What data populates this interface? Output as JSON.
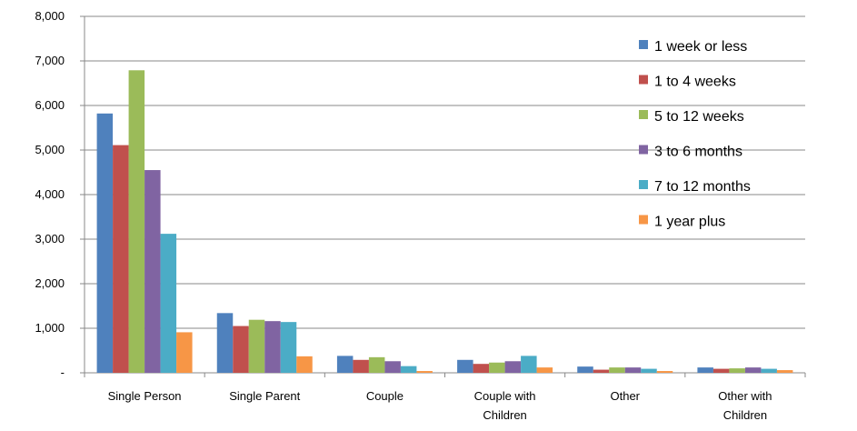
{
  "chart_data": {
    "type": "bar",
    "title": "",
    "xlabel": "",
    "ylabel": "",
    "ylim": [
      0,
      8000
    ],
    "yticks": [
      0,
      1000,
      2000,
      3000,
      4000,
      5000,
      6000,
      7000,
      8000
    ],
    "ytick_labels": [
      "-",
      "1,000",
      "2,000",
      "3,000",
      "4,000",
      "5,000",
      "6,000",
      "7,000",
      "8,000"
    ],
    "grid": true,
    "legend_position": "top-right",
    "categories": [
      [
        "Single Person"
      ],
      [
        "Single Parent"
      ],
      [
        "Couple"
      ],
      [
        "Couple with",
        "Children"
      ],
      [
        "Other"
      ],
      [
        "Other with",
        "Children"
      ]
    ],
    "series": [
      {
        "name": "1 week or less",
        "color": "#4F81BD",
        "values": [
          5820,
          1340,
          380,
          290,
          140,
          120
        ]
      },
      {
        "name": "1 to 4 weeks",
        "color": "#C0504D",
        "values": [
          5110,
          1050,
          290,
          200,
          70,
          90
        ]
      },
      {
        "name": "5 to 12 weeks",
        "color": "#9BBB59",
        "values": [
          6790,
          1190,
          350,
          230,
          120,
          100
        ]
      },
      {
        "name": "3 to 6 months",
        "color": "#8064A2",
        "values": [
          4550,
          1160,
          260,
          260,
          120,
          120
        ]
      },
      {
        "name": "7 to 12 months",
        "color": "#4BACC6",
        "values": [
          3120,
          1140,
          150,
          380,
          90,
          90
        ]
      },
      {
        "name": "1 year plus",
        "color": "#F79646",
        "values": [
          910,
          370,
          40,
          120,
          40,
          60
        ]
      }
    ]
  }
}
